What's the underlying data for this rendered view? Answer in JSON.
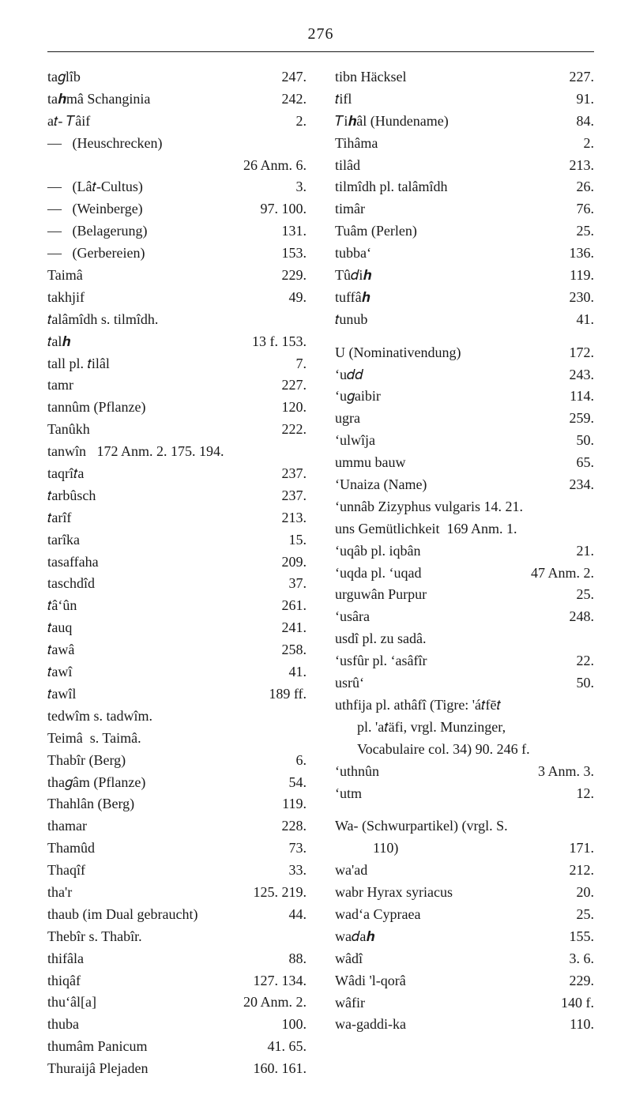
{
  "page_number": "276",
  "left": [
    {
      "term": "ta𝑔lîb",
      "pg": "247.",
      "indent": 0
    },
    {
      "term": "ta𝒉mâ Schanginia",
      "pg": "242.",
      "indent": 0
    },
    {
      "term": "a𝑡- 𝑇âif",
      "pg": "2.",
      "indent": 0
    },
    {
      "term": "—   (Heuschrecken)",
      "pg": "",
      "indent": 0
    },
    {
      "term": "",
      "pg": "26 Anm. 6.",
      "indent": 0,
      "right_only": true
    },
    {
      "term": "—   (Lâ𝑡-Cultus)",
      "pg": "3.",
      "indent": 0
    },
    {
      "term": "—   (Weinberge)",
      "pg": "97. 100.",
      "indent": 0
    },
    {
      "term": "—   (Belagerung)",
      "pg": "131.",
      "indent": 0
    },
    {
      "term": "—   (Gerbereien)",
      "pg": "153.",
      "indent": 0
    },
    {
      "term": "Taimâ",
      "pg": "229.",
      "indent": 0
    },
    {
      "term": "takhjif",
      "pg": "49.",
      "indent": 0
    },
    {
      "term": "𝑡alâmîdh s. tilmîdh.",
      "pg": "",
      "indent": 0
    },
    {
      "term": "𝑡al𝒉",
      "pg": "13 f. 153.",
      "indent": 0
    },
    {
      "term": "tall pl. 𝑡ilâl",
      "pg": "7.",
      "indent": 0
    },
    {
      "term": "tamr",
      "pg": "227.",
      "indent": 0
    },
    {
      "term": "tannûm (Pflanze)",
      "pg": "120.",
      "indent": 0
    },
    {
      "term": "Tanûkh",
      "pg": "222.",
      "indent": 0
    },
    {
      "term": "tanwîn   172 Anm. 2. 175. 194.",
      "pg": "",
      "indent": 0,
      "nofill": true
    },
    {
      "term": "taqrî𝑡a",
      "pg": "237.",
      "indent": 0
    },
    {
      "term": "𝑡arbûsch",
      "pg": "237.",
      "indent": 0
    },
    {
      "term": "𝑡arîf",
      "pg": "213.",
      "indent": 0
    },
    {
      "term": "tarîka",
      "pg": "15.",
      "indent": 0
    },
    {
      "term": "tasaffaha",
      "pg": "209.",
      "indent": 0
    },
    {
      "term": "taschdîd",
      "pg": "37.",
      "indent": 0
    },
    {
      "term": "𝑡â‘ûn",
      "pg": "261.",
      "indent": 0
    },
    {
      "term": "𝑡auq",
      "pg": "241.",
      "indent": 0
    },
    {
      "term": "𝑡awâ",
      "pg": "258.",
      "indent": 0
    },
    {
      "term": "𝑡awî",
      "pg": "41.",
      "indent": 0
    },
    {
      "term": "𝑡awîl",
      "pg": "189 ff.",
      "indent": 0
    },
    {
      "term": "tedwîm s. tadwîm.",
      "pg": "",
      "indent": 0
    },
    {
      "term": "Teimâ  s. Taimâ.",
      "pg": "",
      "indent": 0
    },
    {
      "term": "Thabîr (Berg)",
      "pg": "6.",
      "indent": 0
    },
    {
      "term": "tha𝑔âm (Pflanze)",
      "pg": "54.",
      "indent": 0
    },
    {
      "term": "Thahlân (Berg)",
      "pg": "119.",
      "indent": 0
    },
    {
      "term": "thamar",
      "pg": "228.",
      "indent": 0
    },
    {
      "term": "Thamûd",
      "pg": "73.",
      "indent": 0
    },
    {
      "term": "Thaqîf",
      "pg": "33.",
      "indent": 0
    },
    {
      "term": "tha'r",
      "pg": "125. 219.",
      "indent": 0
    },
    {
      "term": "thaub (im Dual gebraucht)",
      "pg": "44.",
      "indent": 0
    },
    {
      "term": "Thebîr s. Thabîr.",
      "pg": "",
      "indent": 0
    },
    {
      "term": "thifâla",
      "pg": "88.",
      "indent": 0
    },
    {
      "term": "thiqâf",
      "pg": "127. 134.",
      "indent": 0
    },
    {
      "term": "thu‘âl[a]",
      "pg": "20 Anm. 2.",
      "indent": 0
    },
    {
      "term": "thuba",
      "pg": "100.",
      "indent": 0
    },
    {
      "term": "thumâm Panicum",
      "pg": "41. 65.",
      "indent": 0
    },
    {
      "term": "Thuraijâ Plejaden",
      "pg": "160. 161.",
      "indent": 0
    }
  ],
  "right": [
    {
      "term": "tibn Häcksel",
      "pg": "227.",
      "indent": 0
    },
    {
      "term": "𝑡ifl",
      "pg": "91.",
      "indent": 0
    },
    {
      "term": "𝑇i𝒉âl (Hundename)",
      "pg": "84.",
      "indent": 0
    },
    {
      "term": "Tihâma",
      "pg": "2.",
      "indent": 0
    },
    {
      "term": "tilâd",
      "pg": "213.",
      "indent": 0
    },
    {
      "term": "tilmîdh pl. talâmîdh",
      "pg": "26.",
      "indent": 0
    },
    {
      "term": "timâr",
      "pg": "76.",
      "indent": 0
    },
    {
      "term": "Tuâm (Perlen)",
      "pg": "25.",
      "indent": 0
    },
    {
      "term": "tubba‘",
      "pg": "136.",
      "indent": 0
    },
    {
      "term": "Tû𝑑i𝒉",
      "pg": "119.",
      "indent": 0
    },
    {
      "term": "tuffâ𝒉",
      "pg": "230.",
      "indent": 0
    },
    {
      "term": "𝑡unub",
      "pg": "41.",
      "indent": 0
    },
    {
      "term": "spacer"
    },
    {
      "term": "U (Nominativendung)",
      "pg": "172.",
      "indent": 0
    },
    {
      "term": "‘u𝑑𝑑",
      "pg": "243.",
      "indent": 0
    },
    {
      "term": "‘u𝑔aibir",
      "pg": "114.",
      "indent": 0
    },
    {
      "term": "ugra",
      "pg": "259.",
      "indent": 0
    },
    {
      "term": "‘ulwîja",
      "pg": "50.",
      "indent": 0
    },
    {
      "term": "ummu bauw",
      "pg": "65.",
      "indent": 0
    },
    {
      "term": "‘Unaiza (Name)",
      "pg": "234.",
      "indent": 0
    },
    {
      "term": "‘unnâb Zizyphus vulgaris 14. 21.",
      "pg": "",
      "indent": 0,
      "nofill": true
    },
    {
      "term": "uns Gemütlichkeit  169 Anm. 1.",
      "pg": "",
      "indent": 0,
      "nofill": true
    },
    {
      "term": "‘uqâb pl. iqbân",
      "pg": "21.",
      "indent": 0
    },
    {
      "term": "‘uqda pl. ‘uqad",
      "pg": "47 Anm. 2.",
      "indent": 0
    },
    {
      "term": "urguwân Purpur",
      "pg": "25.",
      "indent": 0
    },
    {
      "term": "‘usâra",
      "pg": "248.",
      "indent": 0
    },
    {
      "term": "usdî pl. zu sadâ.",
      "pg": "",
      "indent": 0
    },
    {
      "term": "‘usfûr pl. ‘asâfîr",
      "pg": "22.",
      "indent": 0
    },
    {
      "term": "usrû‘",
      "pg": "50.",
      "indent": 0
    },
    {
      "term": "uthfija pl. athâfî (Tigre: 'á𝑡fē𝑡",
      "pg": "",
      "indent": 0,
      "nofill": true
    },
    {
      "term": "pl. 'a𝑡äfi, vrgl. Munzinger,",
      "pg": "",
      "indent": 1,
      "nofill": true
    },
    {
      "term": "Vocabulaire col. 34) 90. 246 f.",
      "pg": "",
      "indent": 1,
      "nofill": true
    },
    {
      "term": "‘uthnûn",
      "pg": "3 Anm. 3.",
      "indent": 0
    },
    {
      "term": "‘utm",
      "pg": "12.",
      "indent": 0
    },
    {
      "term": "spacer"
    },
    {
      "term": "Wa- (Schwurpartikel) (vrgl. S.",
      "pg": "",
      "indent": 0,
      "nofill": true
    },
    {
      "term": "110)",
      "pg": "171.",
      "indent": 2
    },
    {
      "term": "wa'ad",
      "pg": "212.",
      "indent": 0
    },
    {
      "term": "wabr Hyrax syriacus",
      "pg": "20.",
      "indent": 0
    },
    {
      "term": "wad‘a Cypraea",
      "pg": "25.",
      "indent": 0
    },
    {
      "term": "wa𝑑a𝒉",
      "pg": "155.",
      "indent": 0
    },
    {
      "term": "wâdî",
      "pg": "3. 6.",
      "indent": 0
    },
    {
      "term": "Wâdi 'l-qorâ",
      "pg": "229.",
      "indent": 0
    },
    {
      "term": "wâfir",
      "pg": "140 f.",
      "indent": 0
    },
    {
      "term": "wa-gaddi-ka",
      "pg": "110.",
      "indent": 0
    }
  ]
}
